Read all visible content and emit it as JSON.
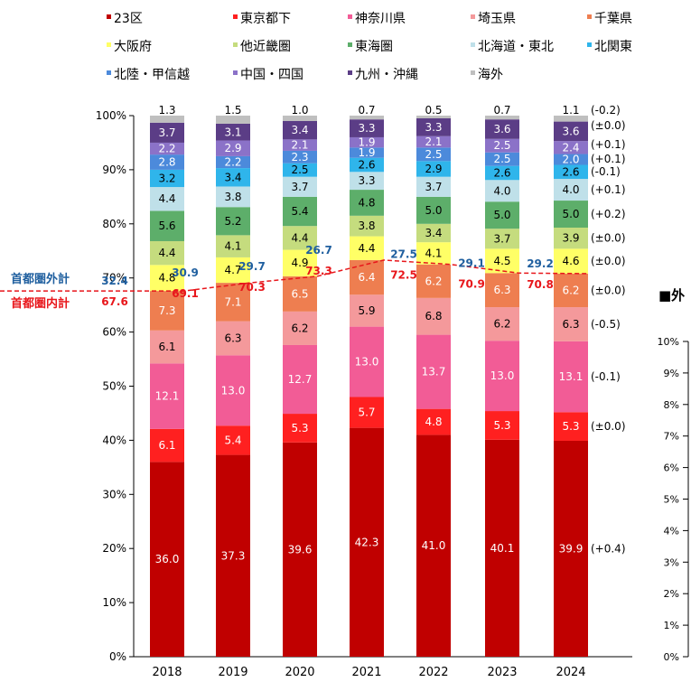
{
  "chart_data": {
    "type": "bar",
    "stacked": true,
    "categories": [
      "2018",
      "2019",
      "2020",
      "2021",
      "2022",
      "2023",
      "2024"
    ],
    "ylim": [
      0,
      100
    ],
    "yticks": [
      "0%",
      "10%",
      "20%",
      "30%",
      "40%",
      "50%",
      "60%",
      "70%",
      "80%",
      "90%",
      "100%"
    ],
    "series": [
      {
        "name": "23区",
        "color": "#C00000",
        "values": [
          36.0,
          37.3,
          39.6,
          42.3,
          41.0,
          40.1,
          39.9
        ]
      },
      {
        "name": "東京都下",
        "color": "#FF2020",
        "values": [
          6.1,
          5.4,
          5.3,
          5.7,
          4.8,
          5.3,
          5.3
        ]
      },
      {
        "name": "神奈川県",
        "color": "#F25C96",
        "values": [
          12.1,
          13.0,
          12.7,
          13.0,
          13.7,
          13.0,
          13.1
        ]
      },
      {
        "name": "埼玉県",
        "color": "#F4999B",
        "values": [
          6.1,
          6.3,
          6.2,
          5.9,
          6.8,
          6.2,
          6.3
        ]
      },
      {
        "name": "千葉県",
        "color": "#EE7E50",
        "values": [
          7.3,
          7.1,
          6.5,
          6.4,
          6.2,
          6.3,
          6.2
        ]
      },
      {
        "name": "大阪府",
        "color": "#FFFF66",
        "values": [
          4.8,
          4.7,
          4.9,
          4.4,
          4.1,
          4.5,
          4.6
        ]
      },
      {
        "name": "他近畿圏",
        "color": "#C5DC7E",
        "values": [
          4.4,
          4.1,
          4.4,
          3.8,
          3.4,
          3.7,
          3.9
        ]
      },
      {
        "name": "東海圏",
        "color": "#5DAE6A",
        "values": [
          5.6,
          5.2,
          5.4,
          4.8,
          5.0,
          5.0,
          5.0
        ]
      },
      {
        "name": "北海道・東北",
        "color": "#BFE0E9",
        "values": [
          4.4,
          3.8,
          3.7,
          3.3,
          3.7,
          4.0,
          4.0
        ]
      },
      {
        "name": "北関東",
        "color": "#2FB5EB",
        "values": [
          3.2,
          3.4,
          2.5,
          2.6,
          2.9,
          2.6,
          2.6
        ]
      },
      {
        "name": "北陸・甲信越",
        "color": "#4C8ADB",
        "values": [
          2.8,
          2.2,
          2.3,
          1.9,
          2.5,
          2.5,
          2.0
        ]
      },
      {
        "name": "中国・四国",
        "color": "#8B72C8",
        "values": [
          2.2,
          2.9,
          2.1,
          1.9,
          2.1,
          2.5,
          2.4
        ]
      },
      {
        "name": "九州・沖縄",
        "color": "#5B3D86",
        "values": [
          3.7,
          3.1,
          3.4,
          3.3,
          3.3,
          3.6,
          3.6
        ]
      },
      {
        "name": "海外",
        "color": "#BFBFBF",
        "values": [
          1.3,
          1.5,
          1.0,
          0.7,
          0.5,
          0.7,
          1.1
        ]
      }
    ],
    "change_labels": [
      "(+0.4)",
      "(±0.0)",
      "(-0.1)",
      "(-0.5)",
      "(±0.0)",
      "(±0.0)",
      "(±0.0)",
      "(+0.2)",
      "(+0.1)",
      "(-0.1)",
      "(+0.1)",
      "(+0.1)",
      "(±0.0)",
      "(-0.2)"
    ],
    "capital_outside": {
      "label": "首都圏外計",
      "color": "#1F5F9F",
      "values": [
        32.4,
        30.9,
        29.7,
        26.7,
        27.5,
        29.1,
        29.2
      ]
    },
    "capital_inside": {
      "label": "首都圏内計",
      "color": "#E8161B",
      "values": [
        67.6,
        69.1,
        70.3,
        73.3,
        72.5,
        70.9,
        70.8
      ]
    }
  },
  "right_panel": {
    "title": "■外",
    "yticks": [
      "0%",
      "1%",
      "2%",
      "3%",
      "4%",
      "5%",
      "6%",
      "7%",
      "8%",
      "9%",
      "10%"
    ]
  }
}
